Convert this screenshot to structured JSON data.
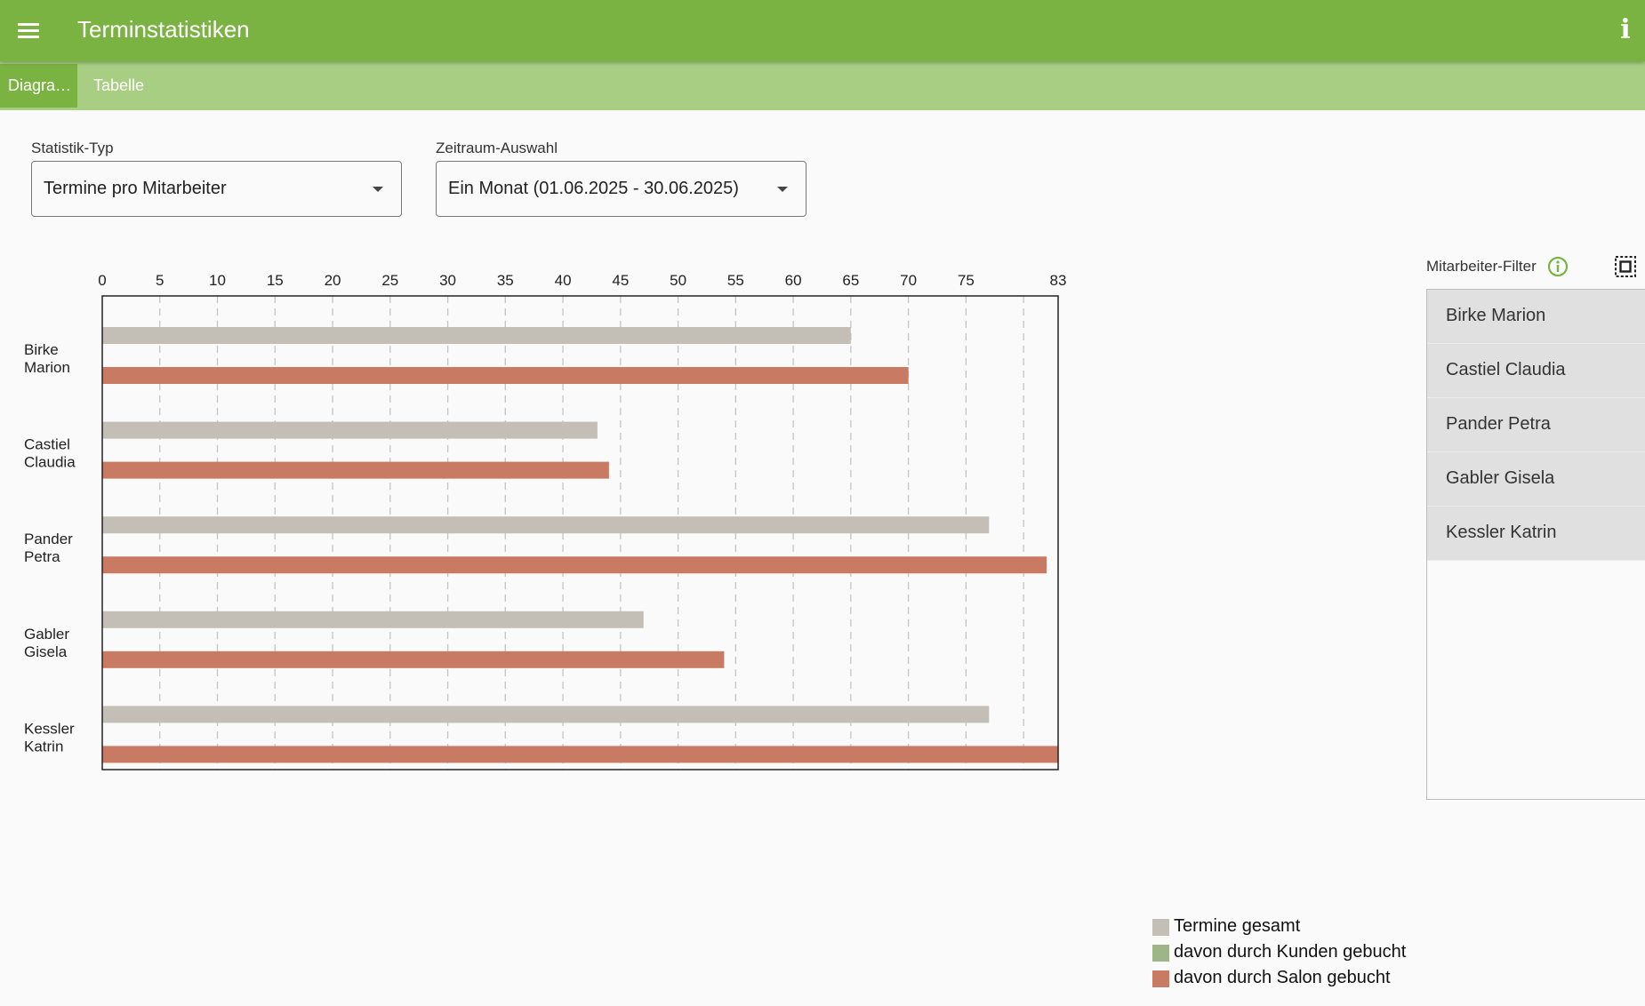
{
  "app": {
    "title": "Terminstatistiken"
  },
  "tabs": [
    {
      "label": "Diagra…",
      "active": true
    },
    {
      "label": "Tabelle",
      "active": false
    }
  ],
  "controls": {
    "stat_type": {
      "label": "Statistik-Typ",
      "value": "Termine pro Mitarbeiter"
    },
    "period": {
      "label": "Zeitraum-Auswahl",
      "value": "Ein Monat (01.06.2025 - 30.06.2025)"
    }
  },
  "filter": {
    "label": "Mitarbeiter-Filter",
    "items": [
      "Birke Marion",
      "Castiel Claudia",
      "Pander Petra",
      "Gabler Gisela",
      "Kessler Katrin"
    ]
  },
  "legend": [
    {
      "label": "Termine gesamt",
      "color": "#c3bfb6"
    },
    {
      "label": "davon durch Kunden gebucht",
      "color": "#9eb58a"
    },
    {
      "label": "davon durch Salon gebucht",
      "color": "#c97a63"
    }
  ],
  "colors": {
    "accent": "#7bb342",
    "tabbar": "#a7ce82"
  },
  "chart_data": {
    "type": "bar",
    "orientation": "horizontal",
    "categories": [
      [
        "Birke",
        "Marion"
      ],
      [
        "Castiel",
        "Claudia"
      ],
      [
        "Pander",
        "Petra"
      ],
      [
        "Gabler",
        "Gisela"
      ],
      [
        "Kessler",
        "Katrin"
      ]
    ],
    "series": [
      {
        "name": "Termine gesamt",
        "color": "#c3bfb6",
        "values": [
          65,
          43,
          77,
          47,
          77
        ]
      },
      {
        "name": "davon durch Salon gebucht",
        "color": "#c97a63",
        "values": [
          70,
          44,
          82,
          54,
          83
        ]
      }
    ],
    "xlim": [
      0,
      83
    ],
    "xticks": [
      0,
      5,
      10,
      15,
      20,
      25,
      30,
      35,
      40,
      45,
      50,
      55,
      60,
      65,
      70,
      75,
      83
    ],
    "gridlines": [
      5,
      10,
      15,
      20,
      25,
      30,
      35,
      40,
      45,
      50,
      55,
      60,
      65,
      70,
      75,
      80
    ],
    "grid": true,
    "legend_position": "bottom-right"
  }
}
